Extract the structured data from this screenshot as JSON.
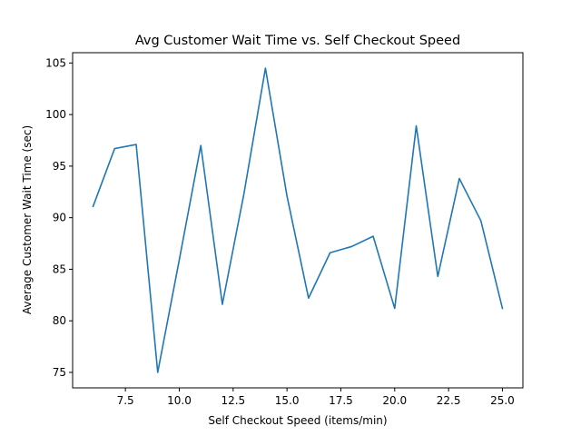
{
  "chart_data": {
    "type": "line",
    "title": "Avg Customer Wait Time vs. Self Checkout Speed",
    "xlabel": "Self Checkout Speed (items/min)",
    "ylabel": "Average Customer Wait Time (sec)",
    "x": [
      6,
      7,
      8,
      9,
      10,
      11,
      12,
      13,
      14,
      15,
      16,
      17,
      18,
      19,
      20,
      21,
      22,
      23,
      24,
      25
    ],
    "series": [
      {
        "color": "#1f77b4",
        "values": [
          91.1,
          96.7,
          97.1,
          75.0,
          85.9,
          97.0,
          81.6,
          92.3,
          104.5,
          92.1,
          82.2,
          86.6,
          87.2,
          88.2,
          81.2,
          98.9,
          84.3,
          93.8,
          89.7,
          81.2
        ]
      }
    ],
    "xlim": [
      5.05,
      25.95
    ],
    "ylim": [
      73.5,
      106.0
    ],
    "xticks": [
      7.5,
      10.0,
      12.5,
      15.0,
      17.5,
      20.0,
      22.5,
      25.0
    ],
    "xtick_labels": [
      "7.5",
      "10.0",
      "12.5",
      "15.0",
      "17.5",
      "20.0",
      "22.5",
      "25.0"
    ],
    "yticks": [
      75,
      80,
      85,
      90,
      95,
      100,
      105
    ],
    "ytick_labels": [
      "75",
      "80",
      "85",
      "90",
      "95",
      "100",
      "105"
    ],
    "grid": false,
    "legend": "none"
  }
}
